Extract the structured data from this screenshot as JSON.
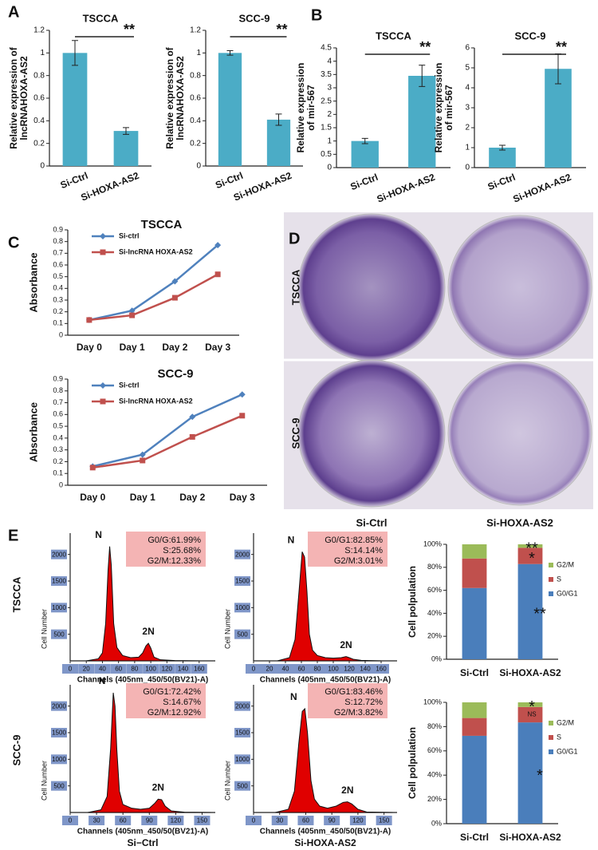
{
  "figure": {
    "panel_labels": [
      "A",
      "B",
      "C",
      "D",
      "E"
    ],
    "colony_rows": [
      "TSCCA",
      "SCC-9"
    ],
    "colony_columns": [
      "Si-Ctrl",
      "Si-HOXA-AS2"
    ],
    "cycle_rows": [
      "TSCCA",
      "SCC-9"
    ]
  },
  "chart_data": [
    {
      "type": "bar",
      "title": "TSCCA",
      "ylabel": [
        "Relative expression of",
        "lncRNAHOXA-AS2"
      ],
      "categories": [
        "Si-Ctrl",
        "Si-HOXA-AS2"
      ],
      "values": [
        1,
        0.31
      ],
      "errors": [
        0.11,
        0.03
      ],
      "color": "#4bacc6",
      "ylim": [
        0,
        1.2
      ],
      "yticks": [
        0,
        0.2,
        0.4,
        0.6,
        0.8,
        1,
        1.2
      ],
      "annotation": "**"
    },
    {
      "type": "bar",
      "title": "SCC-9",
      "ylabel": [
        "Relative expression of",
        "lncRNAHOXA-AS2"
      ],
      "categories": [
        "Si-Ctrl",
        "Si-HOXA-AS2"
      ],
      "values": [
        1,
        0.41
      ],
      "errors": [
        0.02,
        0.05
      ],
      "color": "#4bacc6",
      "ylim": [
        0,
        1.2
      ],
      "yticks": [
        0,
        0.2,
        0.4,
        0.6,
        0.8,
        1,
        1.2
      ],
      "annotation": "**"
    },
    {
      "type": "bar",
      "title": "TSCCA",
      "ylabel": [
        "Relative expression",
        "of mir-567"
      ],
      "categories": [
        "Si-Ctrl",
        "Si-HOXA-AS2"
      ],
      "values": [
        1,
        3.45
      ],
      "errors": [
        0.1,
        0.4
      ],
      "color": "#4bacc6",
      "ylim": [
        0,
        4.5
      ],
      "yticks": [
        0,
        0.5,
        1,
        1.5,
        2,
        2.5,
        3,
        3.5,
        4,
        4.5
      ],
      "annotation": "**"
    },
    {
      "type": "bar",
      "title": "SCC-9",
      "ylabel": [
        "Relative expression",
        "of mir-567"
      ],
      "categories": [
        "Si-Ctrl",
        "Si-HOXA-AS2"
      ],
      "values": [
        1,
        4.95
      ],
      "errors": [
        0.12,
        0.75
      ],
      "color": "#4bacc6",
      "ylim": [
        0,
        6
      ],
      "yticks": [
        0,
        1,
        2,
        3,
        4,
        5,
        6
      ],
      "annotation": "**"
    },
    {
      "type": "line",
      "title": "TSCCA",
      "ylabel": "Absorbance",
      "categories": [
        "Day 0",
        "Day 1",
        "Day 2",
        "Day 3"
      ],
      "series": [
        {
          "name": "Si-ctrl",
          "color": "#4f81bd",
          "values": [
            0.13,
            0.21,
            0.46,
            0.77
          ]
        },
        {
          "name": "Si-lncRNA HOXA-AS2",
          "color": "#c0504d",
          "values": [
            0.13,
            0.17,
            0.32,
            0.52
          ]
        }
      ],
      "ylim": [
        0,
        0.9
      ],
      "yticks": [
        0,
        0.1,
        0.2,
        0.3,
        0.4,
        0.5,
        0.6,
        0.7,
        0.8,
        0.9
      ]
    },
    {
      "type": "line",
      "title": "SCC-9",
      "ylabel": "Absorbance",
      "categories": [
        "Day 0",
        "Day 1",
        "Day 2",
        "Day 3"
      ],
      "series": [
        {
          "name": "Si-ctrl",
          "color": "#4f81bd",
          "values": [
            0.16,
            0.26,
            0.58,
            0.77
          ]
        },
        {
          "name": "Si-lncRNA HOXA-AS2",
          "color": "#c0504d",
          "values": [
            0.15,
            0.21,
            0.41,
            0.59
          ]
        }
      ],
      "ylim": [
        0,
        0.9
      ],
      "yticks": [
        0,
        0.1,
        0.2,
        0.3,
        0.4,
        0.5,
        0.6,
        0.7,
        0.8,
        0.9
      ]
    },
    {
      "type": "flow",
      "ylabel": "Cell Number",
      "xlabel": "Channels (405nm_450/50(BV21)-A)",
      "peak_labels": [
        "N",
        "2N"
      ],
      "stats": [
        "G0/G:61.99%",
        "S:25.68%",
        "G2/M:12.33%"
      ],
      "x": [
        20,
        35,
        40,
        44,
        47,
        49,
        51,
        54,
        58,
        65,
        75,
        85,
        90,
        94,
        97,
        100,
        104,
        112,
        130,
        160
      ],
      "values": [
        0,
        40,
        150,
        700,
        1700,
        2150,
        1800,
        700,
        250,
        100,
        60,
        70,
        150,
        280,
        330,
        240,
        70,
        20,
        5,
        0
      ],
      "color": "#e00000",
      "xlim": [
        0,
        180
      ],
      "xticks": [
        0,
        20,
        40,
        60,
        80,
        100,
        120,
        140,
        160
      ],
      "ylim": [
        0,
        2400
      ],
      "yticks": [
        500,
        1000,
        1500,
        2000
      ]
    },
    {
      "type": "flow",
      "ylabel": "Cell Number",
      "xlabel": "Channels (405nm_450/50(BV21)-A)",
      "peak_labels": [
        "N",
        "2N"
      ],
      "stats": [
        "G0/G1:82.85%",
        "S:14.14%",
        "G2/M:3.01%"
      ],
      "x": [
        30,
        45,
        52,
        57,
        61,
        64,
        67,
        70,
        74,
        80,
        90,
        100,
        110,
        116,
        120,
        125,
        135,
        160
      ],
      "values": [
        0,
        60,
        400,
        1300,
        2050,
        1950,
        1300,
        500,
        200,
        100,
        60,
        50,
        60,
        80,
        60,
        30,
        10,
        0
      ],
      "color": "#e00000",
      "xlim": [
        0,
        180
      ],
      "xticks": [
        0,
        20,
        40,
        60,
        80,
        100,
        120,
        140,
        160
      ],
      "ylim": [
        0,
        2400
      ],
      "yticks": [
        500,
        1000,
        1500,
        2000
      ]
    },
    {
      "type": "flow",
      "ylabel": "Cell Number",
      "xlabel": "Channels (405nm_450/50(BV21)-A)",
      "caption": "Si−Ctrl",
      "peak_labels": [
        "N",
        "2N"
      ],
      "stats": [
        "G0/G1:72.42%",
        "S:14.67%",
        "G2/M:12.92%"
      ],
      "x": [
        20,
        35,
        42,
        46,
        49,
        51,
        53,
        56,
        60,
        70,
        80,
        90,
        96,
        100,
        104,
        108,
        115,
        130,
        160
      ],
      "values": [
        0,
        50,
        300,
        1200,
        2250,
        2000,
        1200,
        400,
        150,
        80,
        60,
        80,
        170,
        250,
        240,
        120,
        30,
        5,
        0
      ],
      "color": "#e00000",
      "xlim": [
        0,
        165
      ],
      "xticks": [
        0,
        30,
        60,
        90,
        120,
        150
      ],
      "ylim": [
        0,
        2400
      ],
      "yticks": [
        500,
        1000,
        1500,
        2000
      ]
    },
    {
      "type": "flow",
      "ylabel": "Cell Number",
      "xlabel": "Channels (405nm_450/50(BV21)-A)",
      "caption": "Si-HOXA-AS2",
      "peak_labels": [
        "N",
        "2N"
      ],
      "stats": [
        "G0/G1:83.46%",
        "S:12.72%",
        "G2/M:3.82%"
      ],
      "x": [
        25,
        40,
        47,
        52,
        56,
        59,
        62,
        66,
        70,
        76,
        85,
        95,
        103,
        108,
        113,
        120,
        130,
        160
      ],
      "values": [
        0,
        60,
        400,
        1300,
        1900,
        1950,
        1500,
        600,
        250,
        120,
        80,
        120,
        190,
        200,
        160,
        60,
        10,
        0
      ],
      "color": "#e00000",
      "xlim": [
        0,
        165
      ],
      "xticks": [
        0,
        30,
        60,
        90,
        120,
        150
      ],
      "ylim": [
        0,
        2400
      ],
      "yticks": [
        500,
        1000,
        1500,
        2000
      ]
    },
    {
      "type": "stacked-bar",
      "ylabel": "Cell polpulation",
      "categories": [
        "Si-Ctrl",
        "Si-HOXA-AS2"
      ],
      "series": [
        {
          "name": "G0/G1",
          "color": "#4a7ebb",
          "values": [
            61.99,
            82.85
          ],
          "annotations": [
            null,
            "**"
          ]
        },
        {
          "name": "S",
          "color": "#c0504d",
          "values": [
            25.68,
            14.14
          ],
          "annotations": [
            null,
            "*"
          ]
        },
        {
          "name": "G2/M",
          "color": "#9bbb59",
          "values": [
            12.33,
            3.01
          ],
          "annotations": [
            null,
            "**"
          ]
        }
      ],
      "ylim": [
        0,
        100
      ],
      "yticks": [
        {
          "value": 0,
          "label": "0%"
        },
        {
          "value": 20,
          "label": "20%"
        },
        {
          "value": 40,
          "label": "40%"
        },
        {
          "value": 60,
          "label": "60%"
        },
        {
          "value": 80,
          "label": "80%"
        },
        {
          "value": 100,
          "label": "100%"
        }
      ]
    },
    {
      "type": "stacked-bar",
      "ylabel": "Cell polpulation",
      "categories": [
        "Si-Ctrl",
        "Si-HOXA-AS2"
      ],
      "series": [
        {
          "name": "G0/G1",
          "color": "#4a7ebb",
          "values": [
            72.42,
            83.46
          ],
          "annotations": [
            null,
            "*"
          ]
        },
        {
          "name": "S",
          "color": "#c0504d",
          "values": [
            14.67,
            12.72
          ],
          "annotations": [
            null,
            "NS"
          ]
        },
        {
          "name": "G2/M",
          "color": "#9bbb59",
          "values": [
            12.92,
            3.82
          ],
          "annotations": [
            null,
            "*"
          ]
        }
      ],
      "ylim": [
        0,
        100
      ],
      "yticks": [
        {
          "value": 0,
          "label": "0%"
        },
        {
          "value": 20,
          "label": "20%"
        },
        {
          "value": 40,
          "label": "40%"
        },
        {
          "value": 60,
          "label": "60%"
        },
        {
          "value": 80,
          "label": "80%"
        },
        {
          "value": 100,
          "label": "100%"
        }
      ]
    }
  ]
}
